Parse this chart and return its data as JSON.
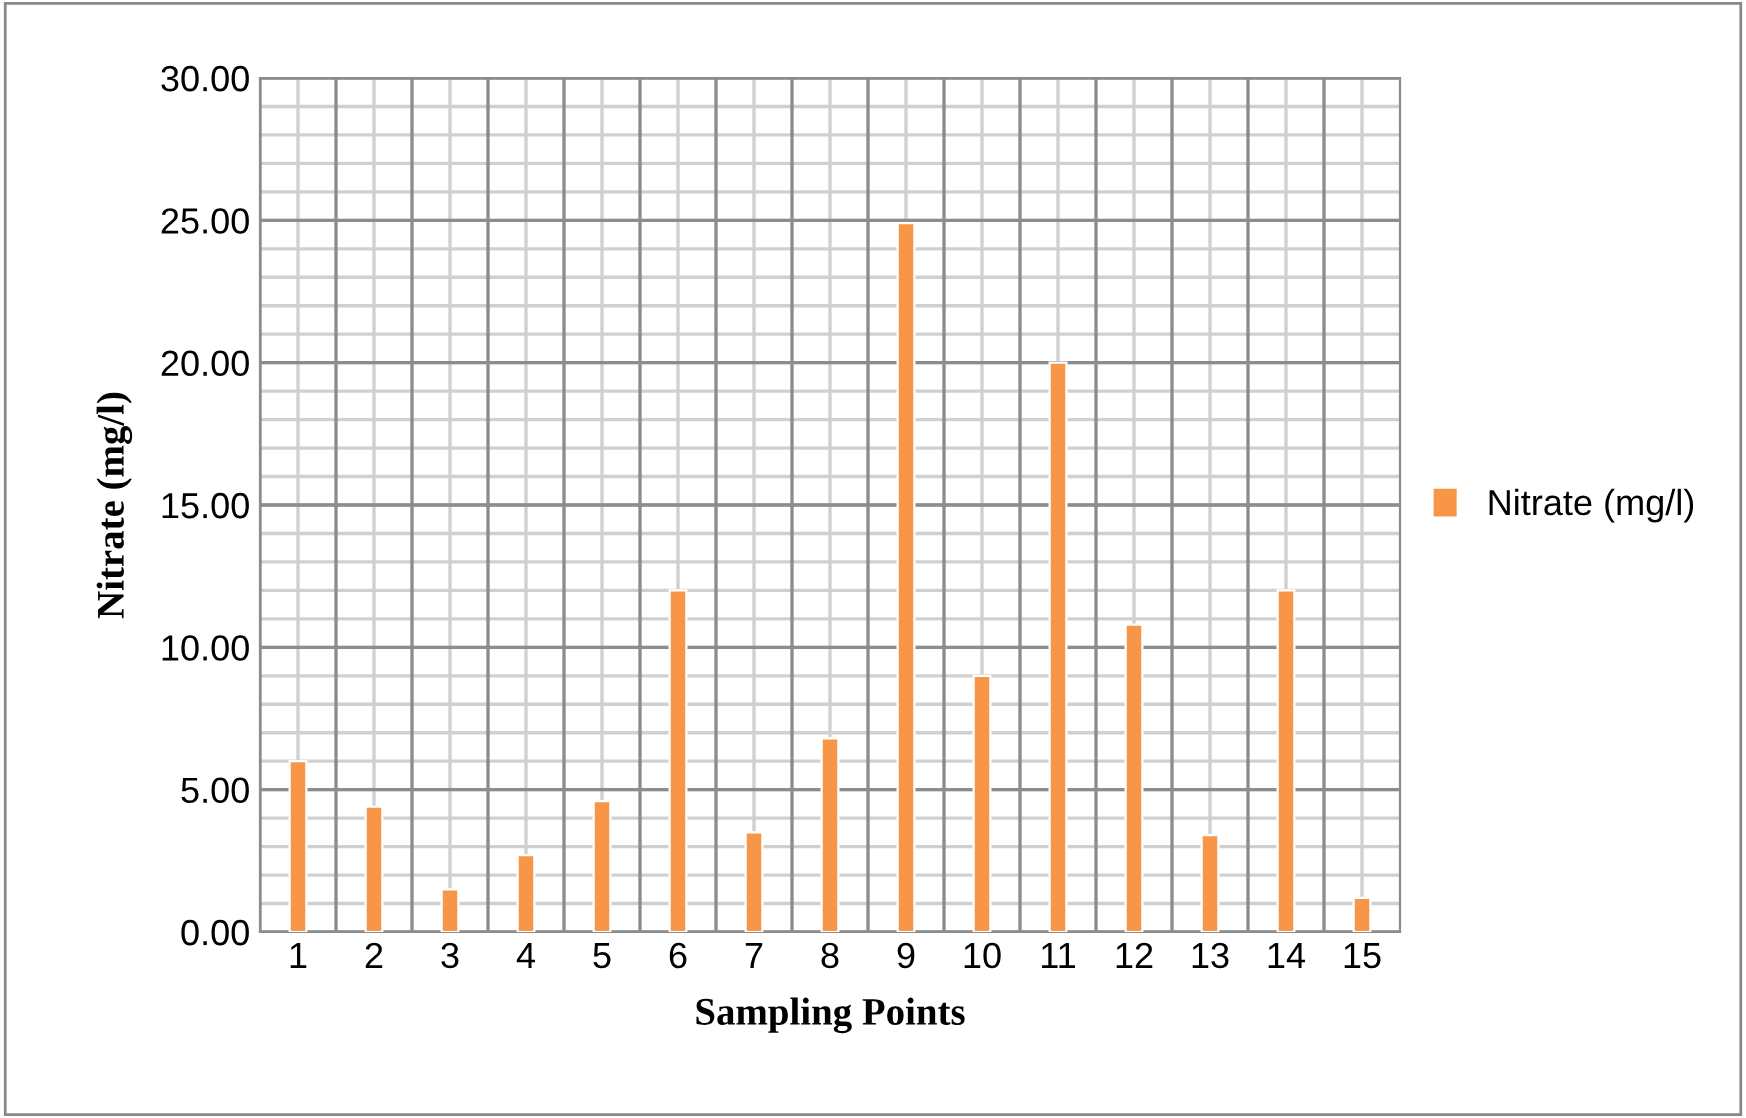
{
  "chart_data": {
    "type": "bar",
    "xlabel": "Sampling Points",
    "ylabel": "Nitrate (mg/l)",
    "categories": [
      "1",
      "2",
      "3",
      "4",
      "5",
      "6",
      "7",
      "8",
      "9",
      "10",
      "11",
      "12",
      "13",
      "14",
      "15"
    ],
    "series": [
      {
        "name": "Nitrate (mg/l)",
        "color": "#f79646",
        "values": [
          6.0,
          4.4,
          1.5,
          2.7,
          4.6,
          12.0,
          3.5,
          6.8,
          24.9,
          9.0,
          20.0,
          10.8,
          3.4,
          12.0,
          1.2
        ]
      }
    ],
    "ylim": [
      0,
      30
    ],
    "yticks": [
      {
        "value": 0,
        "label": "0.00"
      },
      {
        "value": 5,
        "label": "5.00"
      },
      {
        "value": 10,
        "label": "10.00"
      },
      {
        "value": 15,
        "label": "15.00"
      },
      {
        "value": 20,
        "label": "20.00"
      },
      {
        "value": 25,
        "label": "25.00"
      },
      {
        "value": 30,
        "label": "30.00"
      }
    ],
    "grid": true,
    "legend": "right"
  }
}
